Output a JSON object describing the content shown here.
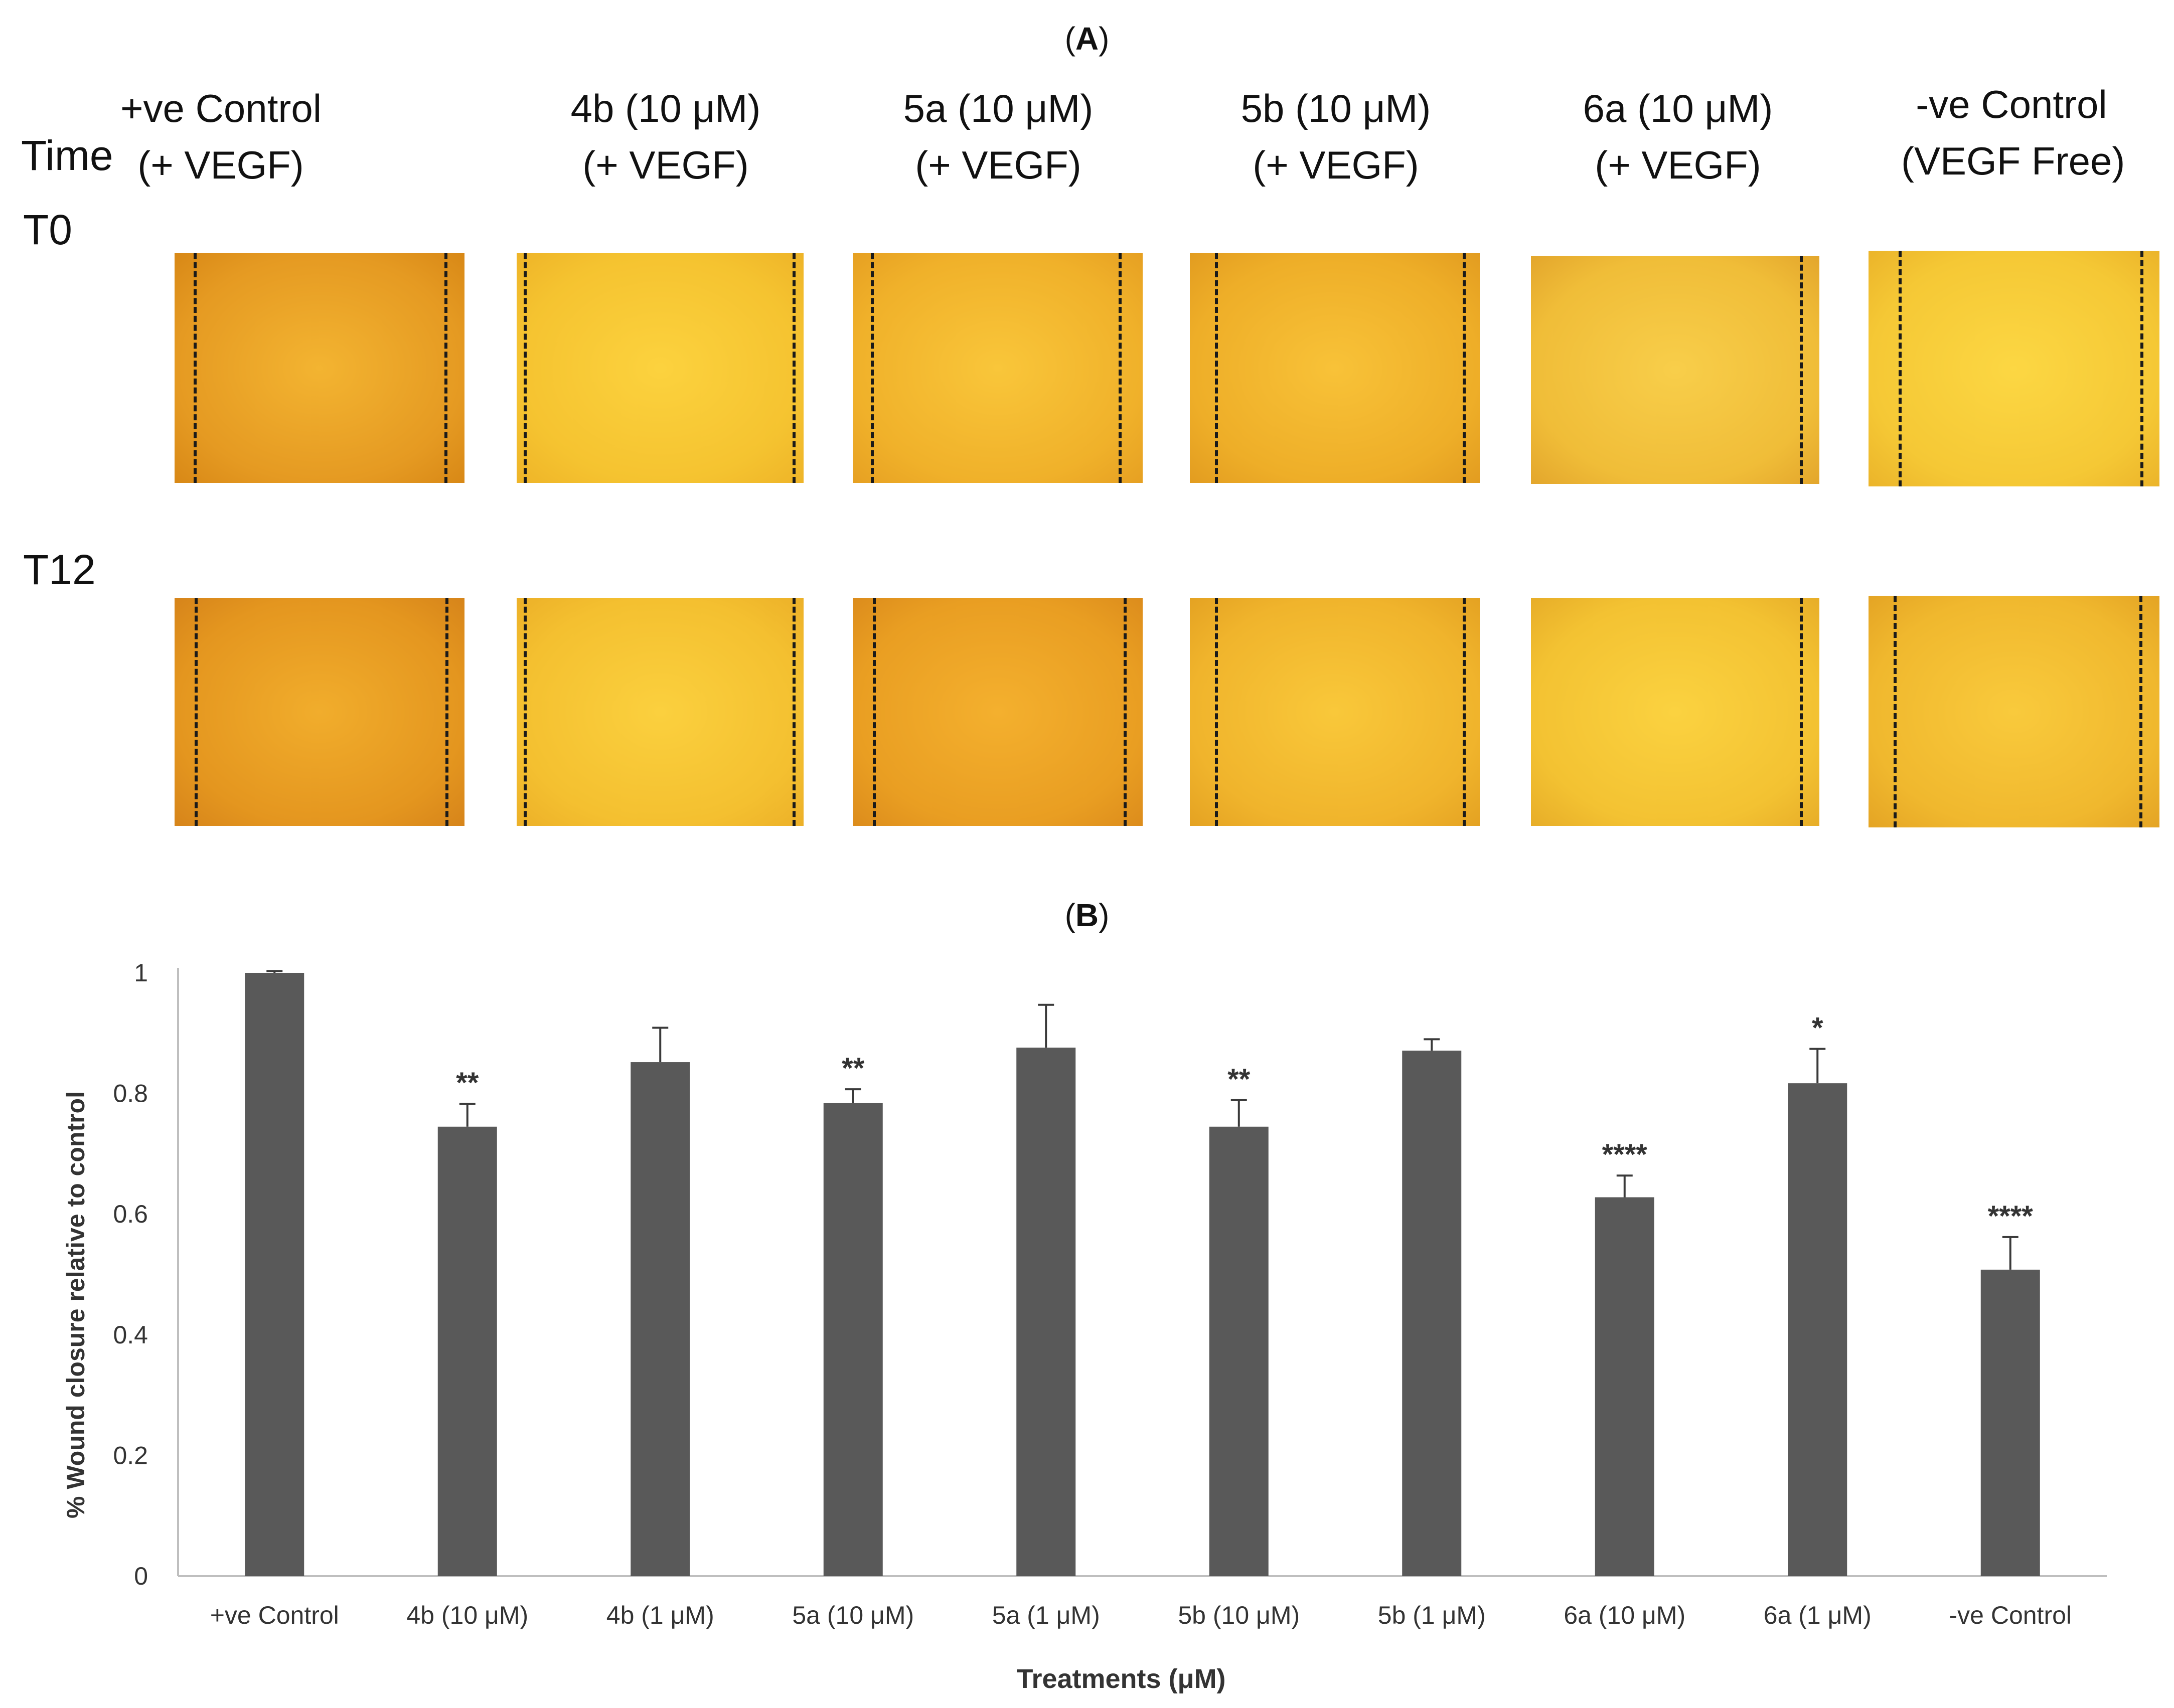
{
  "panel_a": {
    "title_open": "(",
    "title_letter": "A",
    "title_close": ")",
    "row_header": "Time",
    "rows": [
      "T0",
      "T12"
    ],
    "columns": [
      {
        "line1": "+ve Control",
        "line2": "(+ VEGF)"
      },
      {
        "line1": "4b (10 μM)",
        "line2": "(+ VEGF)"
      },
      {
        "line1": "5a (10 μM)",
        "line2": "(+ VEGF)"
      },
      {
        "line1": "5b (10 μM)",
        "line2": "(+ VEGF)"
      },
      {
        "line1": "6a (10 μM)",
        "line2": "(+ VEGF)"
      },
      {
        "line1": "-ve Control",
        "line2": "(VEGF Free)"
      }
    ]
  },
  "panel_b": {
    "title_open": "(",
    "title_letter": "B",
    "title_close": ")"
  },
  "chart_data": {
    "type": "bar",
    "title": "(B)",
    "xlabel": "Treatments (μM)",
    "ylabel": "% Wound closure relative to control",
    "ylim": [
      0,
      1
    ],
    "yticks": [
      0,
      0.2,
      0.4,
      0.6,
      0.8,
      1
    ],
    "ytick_labels": [
      "0",
      "0.2",
      "0.4",
      "0.6",
      "0.8",
      "1"
    ],
    "categories": [
      "+ve Control",
      "4b (10 μM)",
      "4b (1 μM)",
      "5a (10 μM)",
      "5a (1 μM)",
      "5b (10 μM)",
      "5b (1 μM)",
      "6a (10 μM)",
      "6a (1 μM)",
      "-ve Control"
    ],
    "values": [
      1.0,
      0.745,
      0.852,
      0.784,
      0.876,
      0.745,
      0.871,
      0.628,
      0.817,
      0.508
    ],
    "errors": [
      0.003,
      0.038,
      0.057,
      0.023,
      0.071,
      0.044,
      0.019,
      0.036,
      0.057,
      0.054
    ],
    "significance": [
      "",
      "**",
      "",
      "**",
      "",
      "**",
      "",
      "****",
      "*",
      "****"
    ],
    "colors": {
      "bar": "#595959",
      "axis": "#bfbfbf",
      "error": "#3a3a3a"
    }
  }
}
